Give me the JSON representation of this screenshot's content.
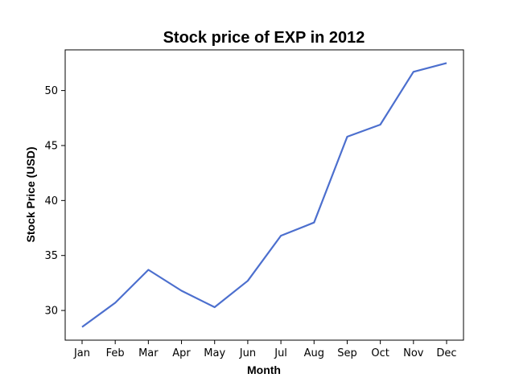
{
  "chart_data": {
    "type": "line",
    "title": "Stock price of EXP in 2012",
    "xlabel": "Month",
    "ylabel": "Stock Price (USD)",
    "categories": [
      "Jan",
      "Feb",
      "Mar",
      "Apr",
      "May",
      "Jun",
      "Jul",
      "Aug",
      "Sep",
      "Oct",
      "Nov",
      "Dec"
    ],
    "series": [
      {
        "values": [
          28.5,
          30.7,
          33.7,
          31.8,
          30.3,
          32.7,
          36.8,
          38.0,
          45.8,
          46.9,
          51.7,
          52.5
        ]
      }
    ],
    "ylim": [
      27.3,
      53.7
    ],
    "yticks": [
      30,
      35,
      40,
      45,
      50
    ],
    "grid": false,
    "colors": {
      "line": "#4c6fce"
    }
  }
}
